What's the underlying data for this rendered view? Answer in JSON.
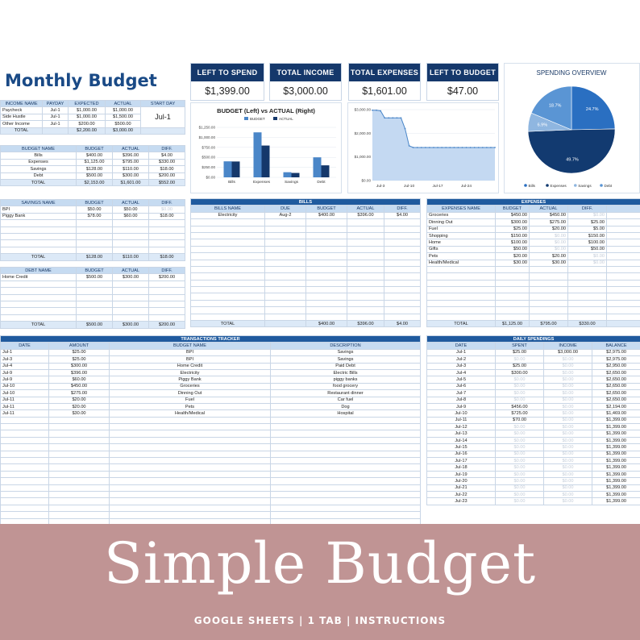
{
  "title": "Monthly Budget",
  "kpis": [
    {
      "label": "LEFT TO SPEND",
      "value": "$1,399.00"
    },
    {
      "label": "TOTAL INCOME",
      "value": "$3,000.00"
    },
    {
      "label": "TOTAL EXPENSES",
      "value": "$1,601.00"
    },
    {
      "label": "LEFT TO BUDGET",
      "value": "$47.00"
    }
  ],
  "income": {
    "headers": [
      "INCOME NAME",
      "PAYDAY",
      "EXPECTED",
      "ACTUAL",
      "START DAY"
    ],
    "rows": [
      [
        "Paycheck",
        "Jul-1",
        "$1,000.00",
        "$1,000.00"
      ],
      [
        "Side Hustle",
        "Jul-1",
        "$1,000.00",
        "$1,500.00"
      ],
      [
        "Other Income",
        "Jul-1",
        "$200.00",
        "$500.00"
      ]
    ],
    "start_day": "Jul-1",
    "total": [
      "TOTAL",
      "",
      "$2,200.00",
      "$3,000.00",
      ""
    ]
  },
  "budget": {
    "headers": [
      "BUDGET NAME",
      "BUDGET",
      "ACTUAL",
      "DIFF."
    ],
    "rows": [
      [
        "Bills",
        "$400.00",
        "$396.00",
        "$4.00"
      ],
      [
        "Expenses",
        "$1,125.00",
        "$795.00",
        "$330.00"
      ],
      [
        "Savings",
        "$128.00",
        "$110.00",
        "$18.00"
      ],
      [
        "Debt",
        "$500.00",
        "$300.00",
        "$200.00"
      ]
    ],
    "total": [
      "TOTAL",
      "$2,153.00",
      "$1,601.00",
      "$552.00"
    ]
  },
  "savings": {
    "headers": [
      "SAVINGS NAME",
      "BUDGET",
      "ACTUAL",
      "DIFF."
    ],
    "rows": [
      [
        "BPI",
        "$50.00",
        "$50.00",
        "$0.00"
      ],
      [
        "Piggy Bank",
        "$78.00",
        "$60.00",
        "$18.00"
      ]
    ],
    "total": [
      "TOTAL",
      "$128.00",
      "$110.00",
      "$18.00"
    ]
  },
  "debt": {
    "headers": [
      "DEBT NAME",
      "BUDGET",
      "ACTUAL",
      "DIFF."
    ],
    "rows": [
      [
        "Home Credit",
        "$500.00",
        "$300.00",
        "$200.00"
      ]
    ],
    "total": [
      "TOTAL",
      "$500.00",
      "$300.00",
      "$200.00"
    ]
  },
  "bills": {
    "section": "BILLS",
    "headers": [
      "BILLS NAME",
      "DUE",
      "BUDGET",
      "ACTUAL",
      "DIFF."
    ],
    "rows": [
      [
        "Electricity",
        "Aug-2",
        "$400.00",
        "$396.00",
        "$4.00"
      ]
    ],
    "total": [
      "TOTAL",
      "",
      "$400.00",
      "$396.00",
      "$4.00"
    ]
  },
  "expenses": {
    "section": "EXPENSES",
    "headers": [
      "EXPENSES NAME",
      "BUDGET",
      "ACTUAL",
      "DIFF."
    ],
    "rows": [
      [
        "Groceries",
        "$450.00",
        "$450.00",
        "$0.00"
      ],
      [
        "Dinning Out",
        "$300.00",
        "$275.00",
        "$25.00"
      ],
      [
        "Fuel",
        "$25.00",
        "$20.00",
        "$5.00"
      ],
      [
        "Shopping",
        "$150.00",
        "$0.00",
        "$150.00"
      ],
      [
        "Home",
        "$100.00",
        "$0.00",
        "$100.00"
      ],
      [
        "Gifts",
        "$50.00",
        "$0.00",
        "$50.00"
      ],
      [
        "Pets",
        "$20.00",
        "$20.00",
        "$0.00"
      ],
      [
        "Health/Medical",
        "$30.00",
        "$30.00",
        "$0.00"
      ]
    ],
    "total": [
      "TOTAL",
      "$1,125.00",
      "$795.00",
      "$330.00"
    ]
  },
  "transactions": {
    "section": "TRANSACTIONS TRACKER",
    "headers": [
      "DATE",
      "AMOUNT",
      "BUDGET NAME",
      "DESCRIPTION"
    ],
    "rows": [
      [
        "Jul-1",
        "$25.00",
        "BPI",
        "Savings"
      ],
      [
        "Jul-3",
        "$25.00",
        "BPI",
        "Savings"
      ],
      [
        "Jul-4",
        "$300.00",
        "Home Credit",
        "Paid Debt"
      ],
      [
        "Jul-9",
        "$396.00",
        "Electricity",
        "Electric Bills"
      ],
      [
        "Jul-9",
        "$60.00",
        "Piggy Bank",
        "piggy banks"
      ],
      [
        "Jul-10",
        "$450.00",
        "Groceries",
        "food grocery"
      ],
      [
        "Jul-10",
        "$275.00",
        "Dinning Out",
        "Restaurant dinner"
      ],
      [
        "Jul-11",
        "$20.00",
        "Fuel",
        "Car fuel"
      ],
      [
        "Jul-11",
        "$20.00",
        "Pets",
        "Dog"
      ],
      [
        "Jul-11",
        "$30.00",
        "Health/Medical",
        "Hospital"
      ]
    ]
  },
  "daily": {
    "section": "DAILY SPENDINGS",
    "headers": [
      "DATE",
      "SPENT",
      "INCOME",
      "BALANCE"
    ],
    "rows": [
      [
        "Jul-1",
        "$25.00",
        "$3,000.00",
        "$2,975.00"
      ],
      [
        "Jul-2",
        "$0.00",
        "$0.00",
        "$2,975.00"
      ],
      [
        "Jul-3",
        "$25.00",
        "$0.00",
        "$2,950.00"
      ],
      [
        "Jul-4",
        "$300.00",
        "$0.00",
        "$2,650.00"
      ],
      [
        "Jul-5",
        "$0.00",
        "$0.00",
        "$2,650.00"
      ],
      [
        "Jul-6",
        "$0.00",
        "$0.00",
        "$2,650.00"
      ],
      [
        "Jul-7",
        "$0.00",
        "$0.00",
        "$2,650.00"
      ],
      [
        "Jul-8",
        "$0.00",
        "$0.00",
        "$2,650.00"
      ],
      [
        "Jul-9",
        "$456.00",
        "$0.00",
        "$2,194.00"
      ],
      [
        "Jul-10",
        "$725.00",
        "$0.00",
        "$1,469.00"
      ],
      [
        "Jul-11",
        "$70.00",
        "$0.00",
        "$1,399.00"
      ],
      [
        "Jul-12",
        "$0.00",
        "$0.00",
        "$1,399.00"
      ],
      [
        "Jul-13",
        "$0.00",
        "$0.00",
        "$1,399.00"
      ],
      [
        "Jul-14",
        "$0.00",
        "$0.00",
        "$1,399.00"
      ],
      [
        "Jul-15",
        "$0.00",
        "$0.00",
        "$1,399.00"
      ],
      [
        "Jul-16",
        "$0.00",
        "$0.00",
        "$1,399.00"
      ],
      [
        "Jul-17",
        "$0.00",
        "$0.00",
        "$1,399.00"
      ],
      [
        "Jul-18",
        "$0.00",
        "$0.00",
        "$1,399.00"
      ],
      [
        "Jul-19",
        "$0.00",
        "$0.00",
        "$1,399.00"
      ],
      [
        "Jul-20",
        "$0.00",
        "$0.00",
        "$1,399.00"
      ],
      [
        "Jul-21",
        "$0.00",
        "$0.00",
        "$1,399.00"
      ],
      [
        "Jul-22",
        "$0.00",
        "$0.00",
        "$1,399.00"
      ],
      [
        "Jul-23",
        "$0.00",
        "$0.00",
        "$1,399.00"
      ]
    ]
  },
  "chart_data": [
    {
      "type": "bar",
      "title": "BUDGET (Left) vs ACTUAL (Right)",
      "categories": [
        "Bills",
        "Expenses",
        "Savings",
        "Debt"
      ],
      "series": [
        {
          "name": "BUDGET",
          "values": [
            400,
            1125,
            128,
            500
          ],
          "color": "#4a86c8"
        },
        {
          "name": "ACTUAL",
          "values": [
            396,
            795,
            110,
            300
          ],
          "color": "#15386b"
        }
      ],
      "yticks": [
        "$0.00",
        "$250.00",
        "$500.00",
        "$750.00",
        "$1,000.00",
        "$1,250.00"
      ],
      "ylim": [
        0,
        1250
      ]
    },
    {
      "type": "area",
      "x": [
        "Jul-1",
        "Jul-2",
        "Jul-3",
        "Jul-4",
        "Jul-5",
        "Jul-6",
        "Jul-7",
        "Jul-8",
        "Jul-9",
        "Jul-10",
        "Jul-11",
        "Jul-12",
        "Jul-13",
        "Jul-14",
        "Jul-15",
        "Jul-16",
        "Jul-17",
        "Jul-18",
        "Jul-19",
        "Jul-20",
        "Jul-21",
        "Jul-22",
        "Jul-23",
        "Jul-24",
        "Jul-25",
        "Jul-26",
        "Jul-27",
        "Jul-28",
        "Jul-29",
        "Jul-30",
        "Jul-31"
      ],
      "values": [
        2975,
        2975,
        2950,
        2650,
        2650,
        2650,
        2650,
        2650,
        2194,
        1469,
        1399,
        1399,
        1399,
        1399,
        1399,
        1399,
        1399,
        1399,
        1399,
        1399,
        1399,
        1399,
        1399,
        1399,
        1399,
        1399,
        1399,
        1399,
        1399,
        1399,
        1399
      ],
      "xticks": [
        "Jul-3",
        "Jul-10",
        "Jul-17",
        "Jul-24"
      ],
      "yticks": [
        "$0.00",
        "$1,000.00",
        "$2,000.00",
        "$3,000.00"
      ],
      "ylim": [
        0,
        3000
      ],
      "color": "#4a86c8"
    },
    {
      "type": "pie",
      "title": "SPENDING OVERVIEW",
      "slices": [
        {
          "name": "Bills",
          "value": 24.7,
          "label": "24.7%",
          "color": "#2a6fc1"
        },
        {
          "name": "Expenses",
          "value": 49.7,
          "label": "49.7%",
          "color": "#123a70"
        },
        {
          "name": "Savings",
          "value": 6.9,
          "label": "6.9%",
          "color": "#8fb6e0"
        },
        {
          "name": "Debt",
          "value": 18.7,
          "label": "18.7%",
          "color": "#5a95d4"
        }
      ]
    }
  ],
  "banner": {
    "title": "Simple Budget",
    "subtitle": "GOOGLE SHEETS  |  1 TAB  |  INSTRUCTIONS"
  }
}
